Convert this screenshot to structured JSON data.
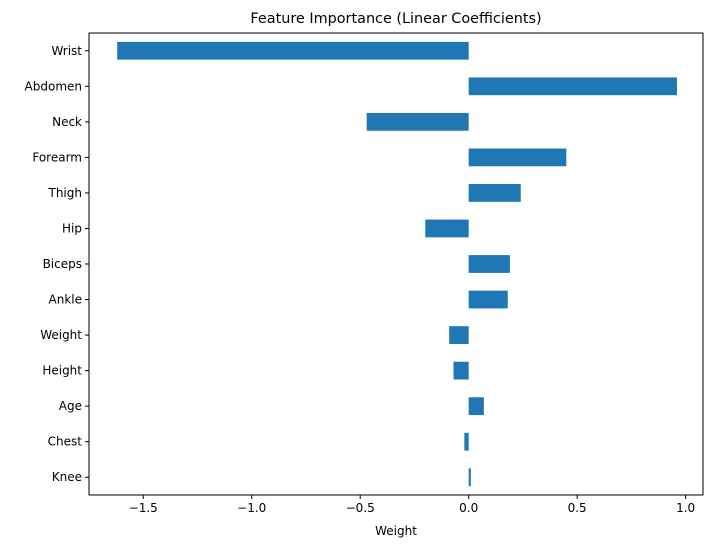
{
  "chart_data": {
    "type": "bar",
    "orientation": "horizontal",
    "title": "Feature Importance (Linear Coefficients)",
    "xlabel": "Weight",
    "ylabel": "",
    "xlim": [
      -1.75,
      1.08
    ],
    "xticks": [
      -1.5,
      -1.0,
      -0.5,
      0.0,
      0.5,
      1.0
    ],
    "xtick_labels": [
      "−1.5",
      "−1.0",
      "−0.5",
      "0.0",
      "0.5",
      "1.0"
    ],
    "grid": false,
    "bar_color": "#1f77b4",
    "categories": [
      "Wrist",
      "Abdomen",
      "Neck",
      "Forearm",
      "Thigh",
      "Hip",
      "Biceps",
      "Ankle",
      "Weight",
      "Height",
      "Age",
      "Chest",
      "Knee"
    ],
    "values": [
      -1.62,
      0.96,
      -0.47,
      0.45,
      0.24,
      -0.2,
      0.19,
      0.18,
      -0.09,
      -0.07,
      0.07,
      -0.02,
      0.01
    ]
  }
}
